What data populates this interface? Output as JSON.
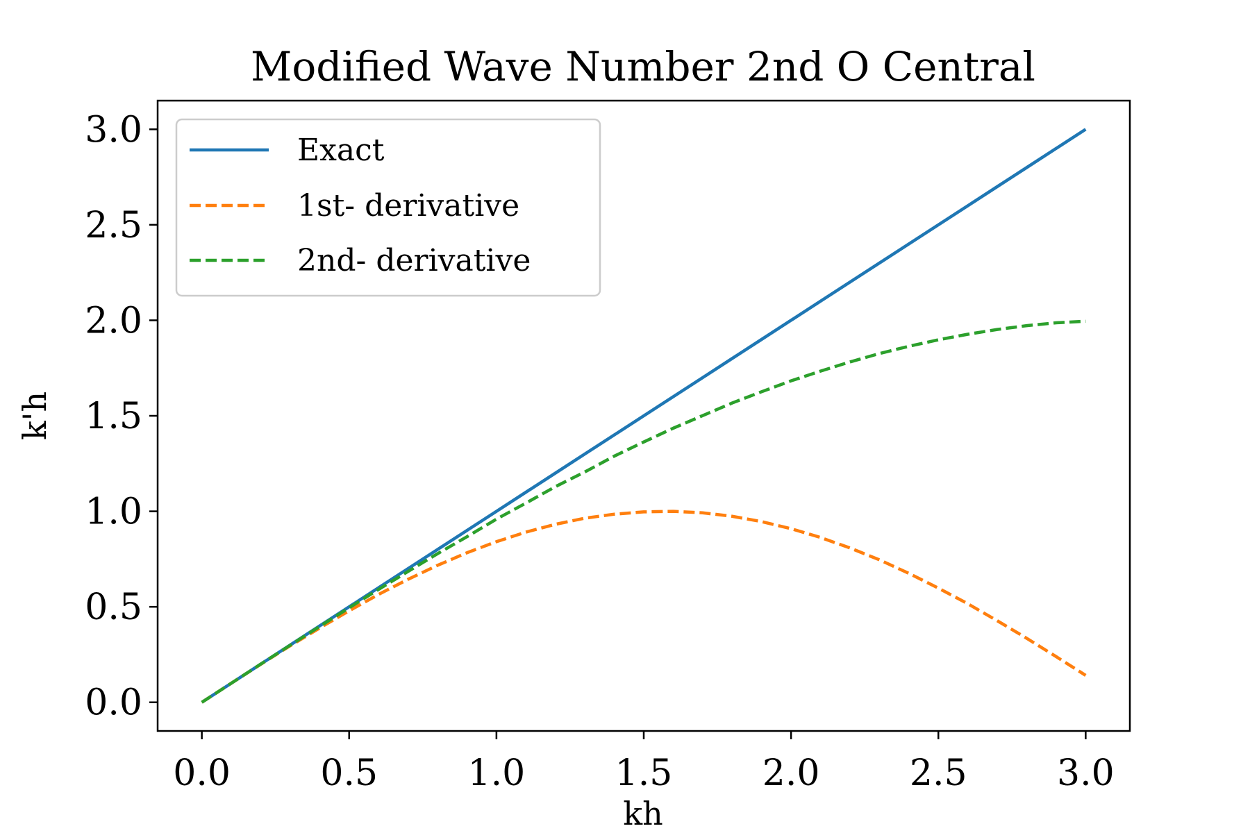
{
  "chart_data": {
    "type": "line",
    "title": "Modified Wave Number 2nd O Central",
    "xlabel": "kh",
    "ylabel": "k'h",
    "xlim": [
      -0.15,
      3.15
    ],
    "ylim": [
      -0.15,
      3.15
    ],
    "xticks": [
      0.0,
      0.5,
      1.0,
      1.5,
      2.0,
      2.5,
      3.0
    ],
    "xtick_labels": [
      "0.0",
      "0.5",
      "1.0",
      "1.5",
      "2.0",
      "2.5",
      "3.0"
    ],
    "yticks": [
      0.0,
      0.5,
      1.0,
      1.5,
      2.0,
      2.5,
      3.0
    ],
    "ytick_labels": [
      "0.0",
      "0.5",
      "1.0",
      "1.5",
      "2.0",
      "2.5",
      "3.0"
    ],
    "grid": false,
    "legend": "top-left",
    "x": [
      0.0,
      0.1,
      0.2,
      0.3,
      0.4,
      0.5,
      0.6,
      0.7,
      0.8,
      0.9,
      1.0,
      1.1,
      1.2,
      1.3,
      1.4,
      1.5,
      1.6,
      1.7,
      1.8,
      1.9,
      2.0,
      2.1,
      2.2,
      2.3,
      2.4,
      2.5,
      2.6,
      2.7,
      2.8,
      2.9,
      3.0
    ],
    "series": [
      {
        "name": "Exact",
        "color": "#1f77b4",
        "dash": "solid",
        "values": [
          0.0,
          0.1,
          0.2,
          0.3,
          0.4,
          0.5,
          0.6,
          0.7,
          0.8,
          0.9,
          1.0,
          1.1,
          1.2,
          1.3,
          1.4,
          1.5,
          1.6,
          1.7,
          1.8,
          1.9,
          2.0,
          2.1,
          2.2,
          2.3,
          2.4,
          2.5,
          2.6,
          2.7,
          2.8,
          2.9,
          3.0
        ]
      },
      {
        "name": "1st- derivative",
        "color": "#ff7f0e",
        "dash": "dashed",
        "values": [
          0.0,
          0.1,
          0.199,
          0.296,
          0.389,
          0.479,
          0.565,
          0.644,
          0.717,
          0.783,
          0.841,
          0.891,
          0.932,
          0.964,
          0.985,
          0.997,
          1.0,
          0.992,
          0.974,
          0.946,
          0.909,
          0.863,
          0.808,
          0.746,
          0.675,
          0.598,
          0.516,
          0.427,
          0.335,
          0.239,
          0.141
        ]
      },
      {
        "name": "2nd- derivative",
        "color": "#2ca02c",
        "dash": "dashed",
        "values": [
          0.0,
          0.1,
          0.2,
          0.299,
          0.397,
          0.495,
          0.591,
          0.685,
          0.778,
          0.867,
          0.959,
          1.043,
          1.129,
          1.206,
          1.289,
          1.363,
          1.435,
          1.501,
          1.567,
          1.626,
          1.683,
          1.734,
          1.782,
          1.826,
          1.864,
          1.898,
          1.927,
          1.952,
          1.972,
          1.987,
          1.995
        ]
      }
    ]
  }
}
